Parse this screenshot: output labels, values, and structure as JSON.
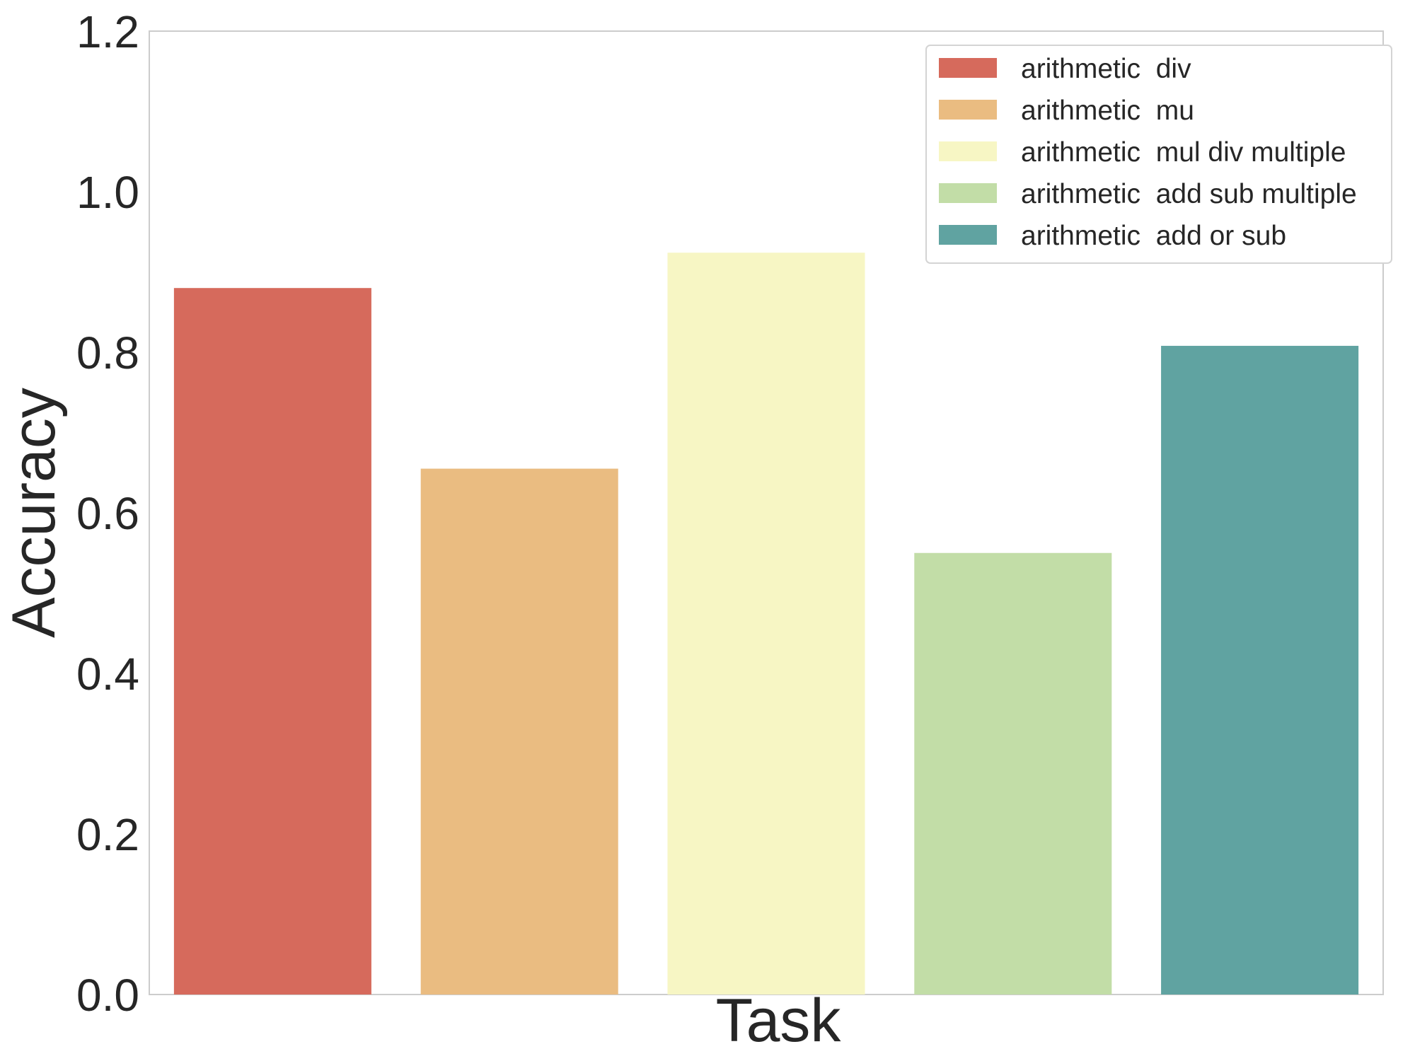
{
  "chart_data": {
    "type": "bar",
    "title": "",
    "xlabel": "Task",
    "ylabel": "Accuracy",
    "ylim": [
      0,
      1.2
    ],
    "yticks": [
      "0.0",
      "0.2",
      "0.4",
      "0.6",
      "0.8",
      "1.0",
      "1.2"
    ],
    "grid": false,
    "legend_position": "top-right",
    "series": [
      {
        "name": "arithmetic  div",
        "value": 0.88,
        "color": "#d66a5c"
      },
      {
        "name": "arithmetic  mu",
        "value": 0.655,
        "color": "#eabc81"
      },
      {
        "name": "arithmetic  mul div multiple",
        "value": 0.924,
        "color": "#f7f6c4"
      },
      {
        "name": "arithmetic  add sub multiple",
        "value": 0.55,
        "color": "#c2dda7"
      },
      {
        "name": "arithmetic  add or sub",
        "value": 0.808,
        "color": "#60a3a1"
      }
    ]
  }
}
